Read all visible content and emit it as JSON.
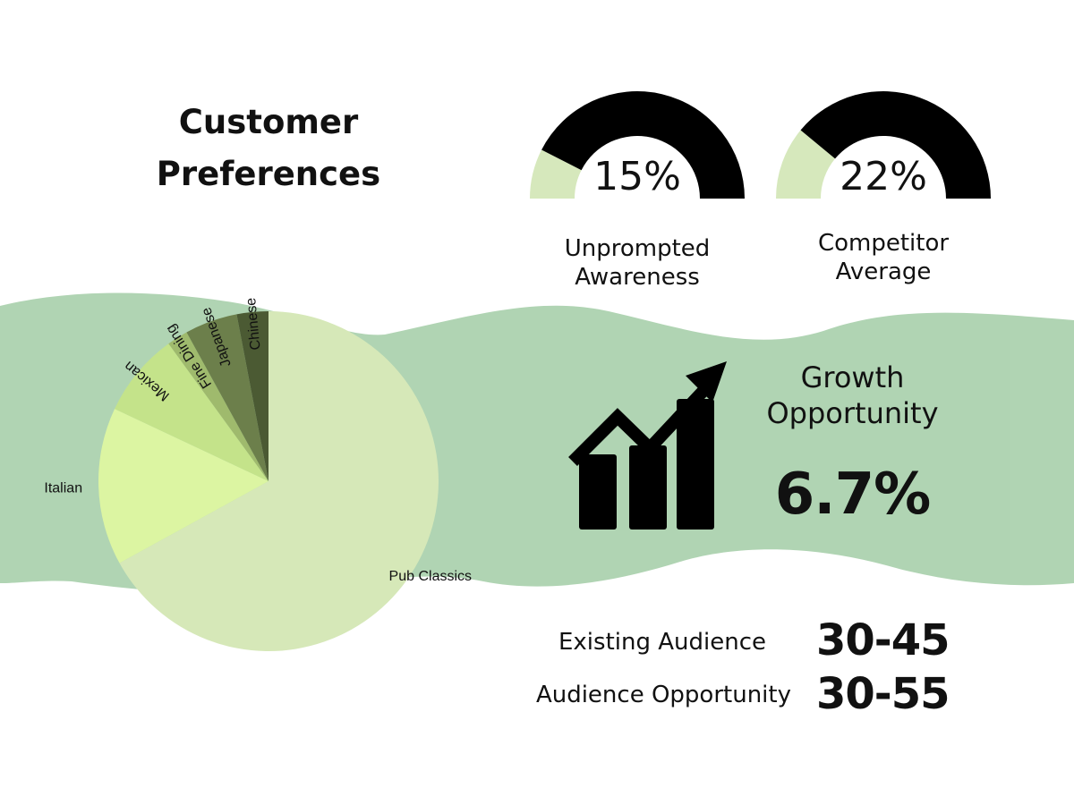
{
  "title": {
    "line1": "Customer",
    "line2": "Preferences"
  },
  "colors": {
    "wave": "#b0d4b3",
    "gauge_dark": "#000000",
    "gauge_light": "#d6e8bc",
    "slices": [
      "#d6e8b8",
      "#dcf5a2",
      "#c4e38a",
      "#9fba6d",
      "#6c7f4b",
      "#4b5a33"
    ]
  },
  "chart_data": [
    {
      "type": "pie",
      "title": "",
      "categories": [
        "Pub Classics",
        "Italian",
        "Mexican",
        "Fine Dining",
        "Japanese",
        "Chinese"
      ],
      "values": [
        67,
        15,
        8,
        2,
        5,
        3
      ]
    },
    {
      "type": "gauge",
      "label_line1": "Unprompted",
      "label_line2": "Awareness",
      "value": 15,
      "display": "15%"
    },
    {
      "type": "gauge",
      "label_line1": "Competitor",
      "label_line2": "Average",
      "value": 22,
      "display": "22%"
    }
  ],
  "growth": {
    "line1": "Growth",
    "line2": "Opportunity",
    "value": "6.7%",
    "icon": "growth-chart-icon"
  },
  "audience": {
    "existing_label": "Existing Audience",
    "existing_value": "30-45",
    "opportunity_label": "Audience Opportunity",
    "opportunity_value": "30-55"
  }
}
